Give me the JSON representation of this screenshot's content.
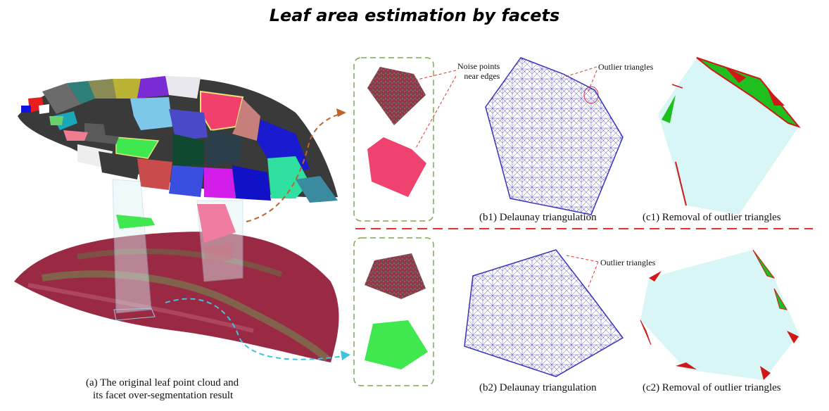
{
  "title": "Leaf area estimation by facets",
  "captions": {
    "a_line1": "(a) The original leaf point cloud and",
    "a_line2": "its facet over-segmentation result",
    "b1": "(b1) Delaunay triangulation",
    "c1": "(c1) Removal of outlier triangles",
    "b2": "(b2) Delaunay triangulation",
    "c2": "(c2) Removal of outlier triangles"
  },
  "annotations": {
    "noise_line1": "Noise points",
    "noise_line2": "near edges",
    "outlier_top": "Outlier triangles",
    "outlier_bottom": "Outlier triangles"
  },
  "colors": {
    "dashed_box": "#7aa84f",
    "divider": "#e0342f",
    "arrow_top": "#c0622b",
    "arrow_bottom": "#3fc3e0",
    "mesh": "#5a4fc9",
    "fill_area": "#d8f6f6",
    "outlier_red": "#d11717",
    "outlier_green": "#1fbf1f",
    "leaf_red": "#9a2a44",
    "facet_pink": "#f0426e",
    "facet_green": "#3fe84f"
  }
}
